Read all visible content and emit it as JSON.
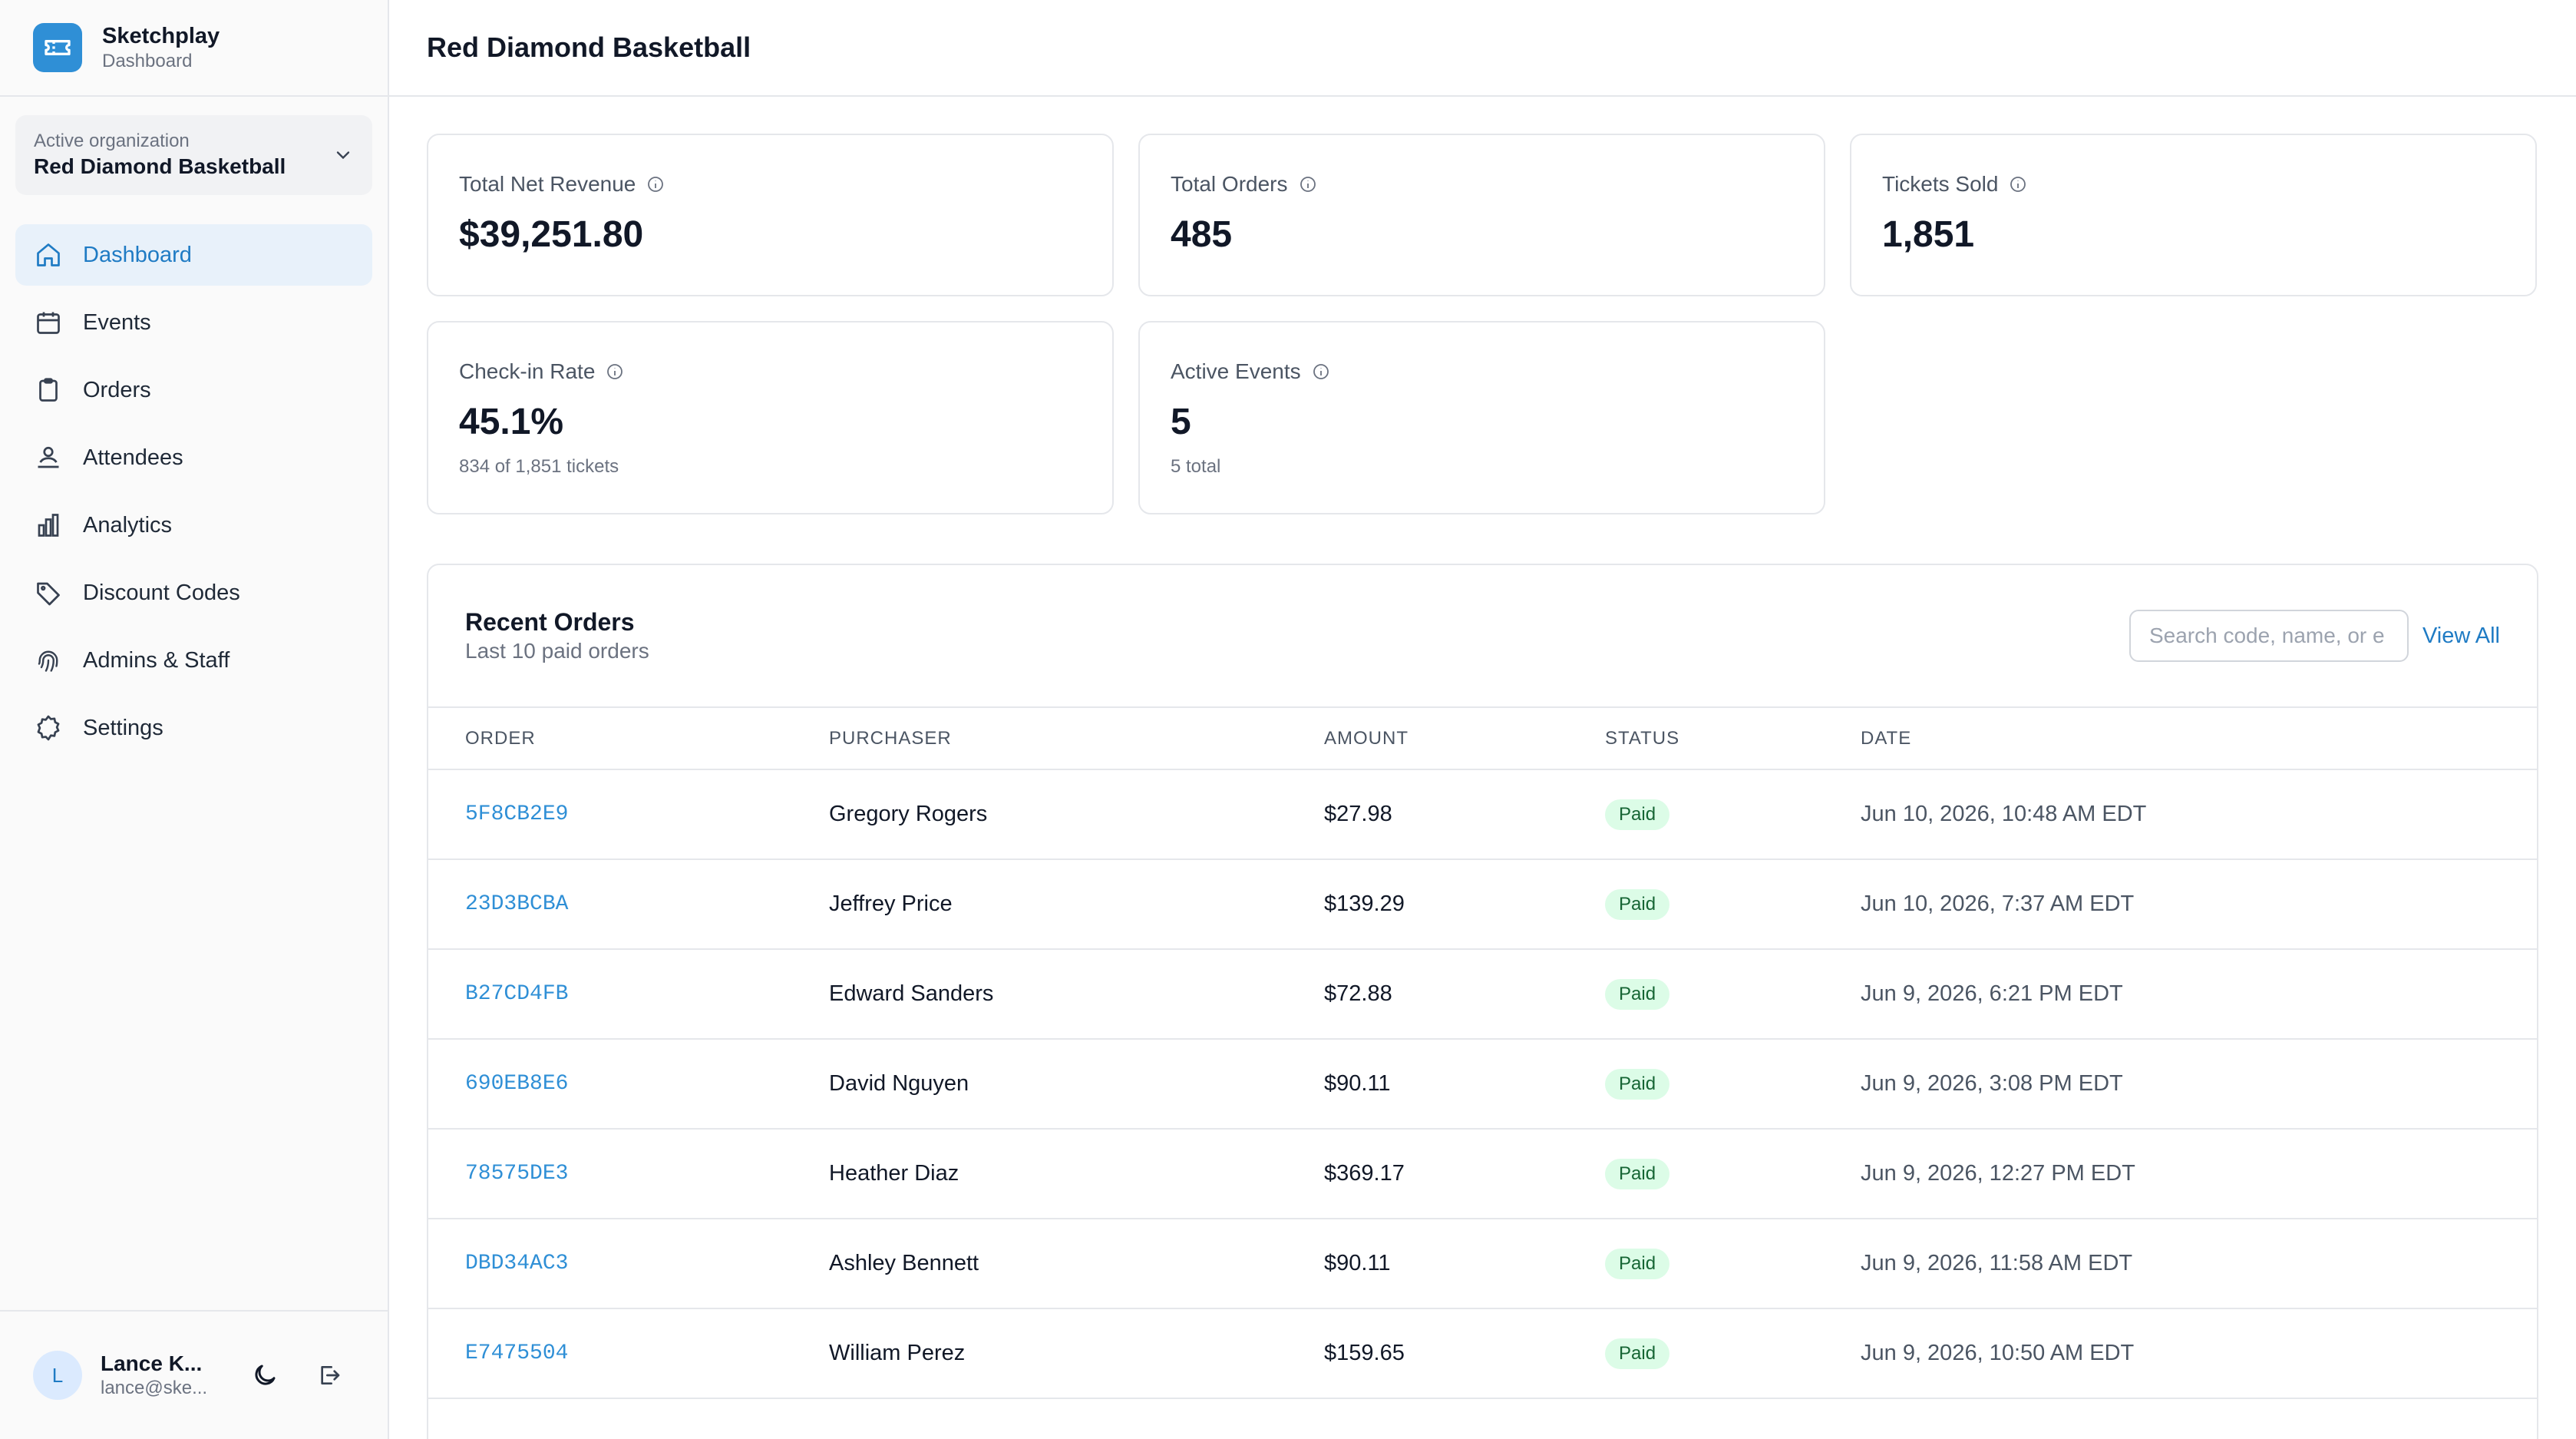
{
  "brand": {
    "name": "Sketchplay",
    "subtitle": "Dashboard",
    "logo_icon": "ticket-icon",
    "accent": "#2f8fd6"
  },
  "org": {
    "label": "Active organization",
    "name": "Red Diamond Basketball"
  },
  "nav": [
    {
      "label": "Dashboard",
      "icon": "home-icon",
      "active": true
    },
    {
      "label": "Events",
      "icon": "calendar-icon"
    },
    {
      "label": "Orders",
      "icon": "clipboard-icon"
    },
    {
      "label": "Attendees",
      "icon": "attendees-icon"
    },
    {
      "label": "Analytics",
      "icon": "bar-chart-icon"
    },
    {
      "label": "Discount Codes",
      "icon": "tag-icon"
    },
    {
      "label": "Admins & Staff",
      "icon": "fingerprint-icon"
    },
    {
      "label": "Settings",
      "icon": "gear-icon"
    }
  ],
  "user": {
    "initial": "L",
    "name": "Lance K...",
    "email": "lance@ske..."
  },
  "page": {
    "title": "Red Diamond Basketball"
  },
  "stats": [
    {
      "label": "Total Net Revenue",
      "value": "$39,251.80",
      "sub": ""
    },
    {
      "label": "Total Orders",
      "value": "485",
      "sub": ""
    },
    {
      "label": "Tickets Sold",
      "value": "1,851",
      "sub": ""
    },
    {
      "label": "Check-in Rate",
      "value": "45.1%",
      "sub": "834 of 1,851 tickets"
    },
    {
      "label": "Active Events",
      "value": "5",
      "sub": "5 total"
    }
  ],
  "recent_orders": {
    "title": "Recent Orders",
    "subtitle": "Last 10 paid orders",
    "search_placeholder": "Search code, name, or e",
    "view_all": "View All",
    "columns": [
      "ORDER",
      "PURCHASER",
      "AMOUNT",
      "STATUS",
      "DATE"
    ],
    "rows": [
      {
        "order": "5F8CB2E9",
        "purchaser": "Gregory Rogers",
        "amount": "$27.98",
        "status": "Paid",
        "date": "Jun 10, 2026, 10:48 AM EDT"
      },
      {
        "order": "23D3BCBA",
        "purchaser": "Jeffrey Price",
        "amount": "$139.29",
        "status": "Paid",
        "date": "Jun 10, 2026, 7:37 AM EDT"
      },
      {
        "order": "B27CD4FB",
        "purchaser": "Edward Sanders",
        "amount": "$72.88",
        "status": "Paid",
        "date": "Jun 9, 2026, 6:21 PM EDT"
      },
      {
        "order": "690EB8E6",
        "purchaser": "David Nguyen",
        "amount": "$90.11",
        "status": "Paid",
        "date": "Jun 9, 2026, 3:08 PM EDT"
      },
      {
        "order": "78575DE3",
        "purchaser": "Heather Diaz",
        "amount": "$369.17",
        "status": "Paid",
        "date": "Jun 9, 2026, 12:27 PM EDT"
      },
      {
        "order": "DBD34AC3",
        "purchaser": "Ashley Bennett",
        "amount": "$90.11",
        "status": "Paid",
        "date": "Jun 9, 2026, 11:58 AM EDT"
      },
      {
        "order": "E7475504",
        "purchaser": "William Perez",
        "amount": "$159.65",
        "status": "Paid",
        "date": "Jun 9, 2026, 10:50 AM EDT"
      }
    ]
  }
}
